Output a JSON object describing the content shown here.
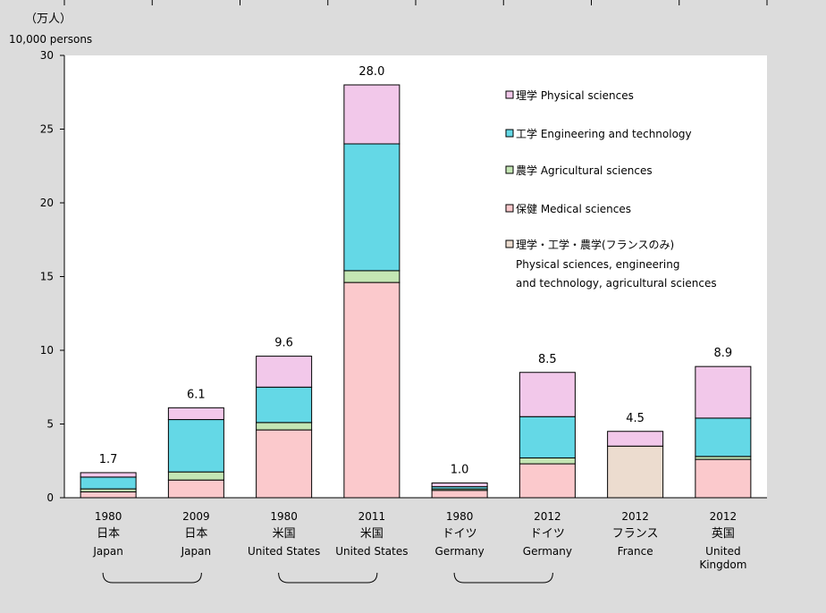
{
  "units": {
    "jp": "（万人）",
    "en": "10,000 persons"
  },
  "chart_data": {
    "type": "bar",
    "stacked": true,
    "ylim": [
      0,
      30
    ],
    "yticks": [
      0,
      5,
      10,
      15,
      20,
      25,
      30
    ],
    "categories": [
      {
        "year": "1980",
        "jp": "日本",
        "en": [
          "Japan"
        ],
        "total": "1.7"
      },
      {
        "year": "2009",
        "jp": "日本",
        "en": [
          "Japan"
        ],
        "total": "6.1"
      },
      {
        "year": "1980",
        "jp": "米国",
        "en": [
          "United States"
        ],
        "total": "9.6"
      },
      {
        "year": "2011",
        "jp": "米国",
        "en": [
          "United States"
        ],
        "total": "28.0"
      },
      {
        "year": "1980",
        "jp": "ドイツ",
        "en": [
          "Germany"
        ],
        "total": "1.0"
      },
      {
        "year": "2012",
        "jp": "ドイツ",
        "en": [
          "Germany"
        ],
        "total": "8.5"
      },
      {
        "year": "2012",
        "jp": "フランス",
        "en": [
          "France"
        ],
        "total": "4.5"
      },
      {
        "year": "2012",
        "jp": "英国",
        "en": [
          "United",
          "Kingdom"
        ],
        "total": "8.9"
      }
    ],
    "series": [
      {
        "name": "保健 Medical sciences",
        "color": "#fbc9cc",
        "values": [
          0.4,
          1.2,
          4.6,
          14.6,
          0.5,
          2.3,
          0,
          2.6
        ]
      },
      {
        "name": "理学・工学・農学(フランスのみ) Physical sciences, engineering and technology, agricultural sciences",
        "color": "#ecdccf",
        "values": [
          0,
          0,
          0,
          0,
          0,
          0,
          3.5,
          0
        ]
      },
      {
        "name": "農学 Agricultural sciences",
        "color": "#c4e6b4",
        "values": [
          0.2,
          0.55,
          0.5,
          0.8,
          0.1,
          0.4,
          0,
          0.2
        ]
      },
      {
        "name": "工学 Engineering and technology",
        "color": "#64d8e6",
        "values": [
          0.8,
          3.55,
          2.4,
          8.6,
          0.15,
          2.8,
          0,
          2.6
        ]
      },
      {
        "name": "理学 Physical sciences",
        "color": "#f2c8ea",
        "values": [
          0.3,
          0.8,
          2.1,
          4.0,
          0.25,
          3.0,
          1.0,
          3.5
        ]
      }
    ],
    "legend": [
      {
        "label": "理学 Physical sciences",
        "color": "#f2c8ea"
      },
      {
        "label": "工学 Engineering and technology",
        "color": "#64d8e6"
      },
      {
        "label": "農学 Agricultural sciences",
        "color": "#c4e6b4"
      },
      {
        "label": "保健 Medical sciences",
        "color": "#fbc9cc"
      },
      {
        "label": "理学・工学・農学(フランスのみ)",
        "color": "#ecdccf",
        "sub": [
          "Physical sciences, engineering",
          "and technology, agricultural sciences"
        ]
      }
    ],
    "groups": [
      [
        0,
        1
      ],
      [
        2,
        3
      ],
      [
        4,
        5
      ]
    ]
  }
}
